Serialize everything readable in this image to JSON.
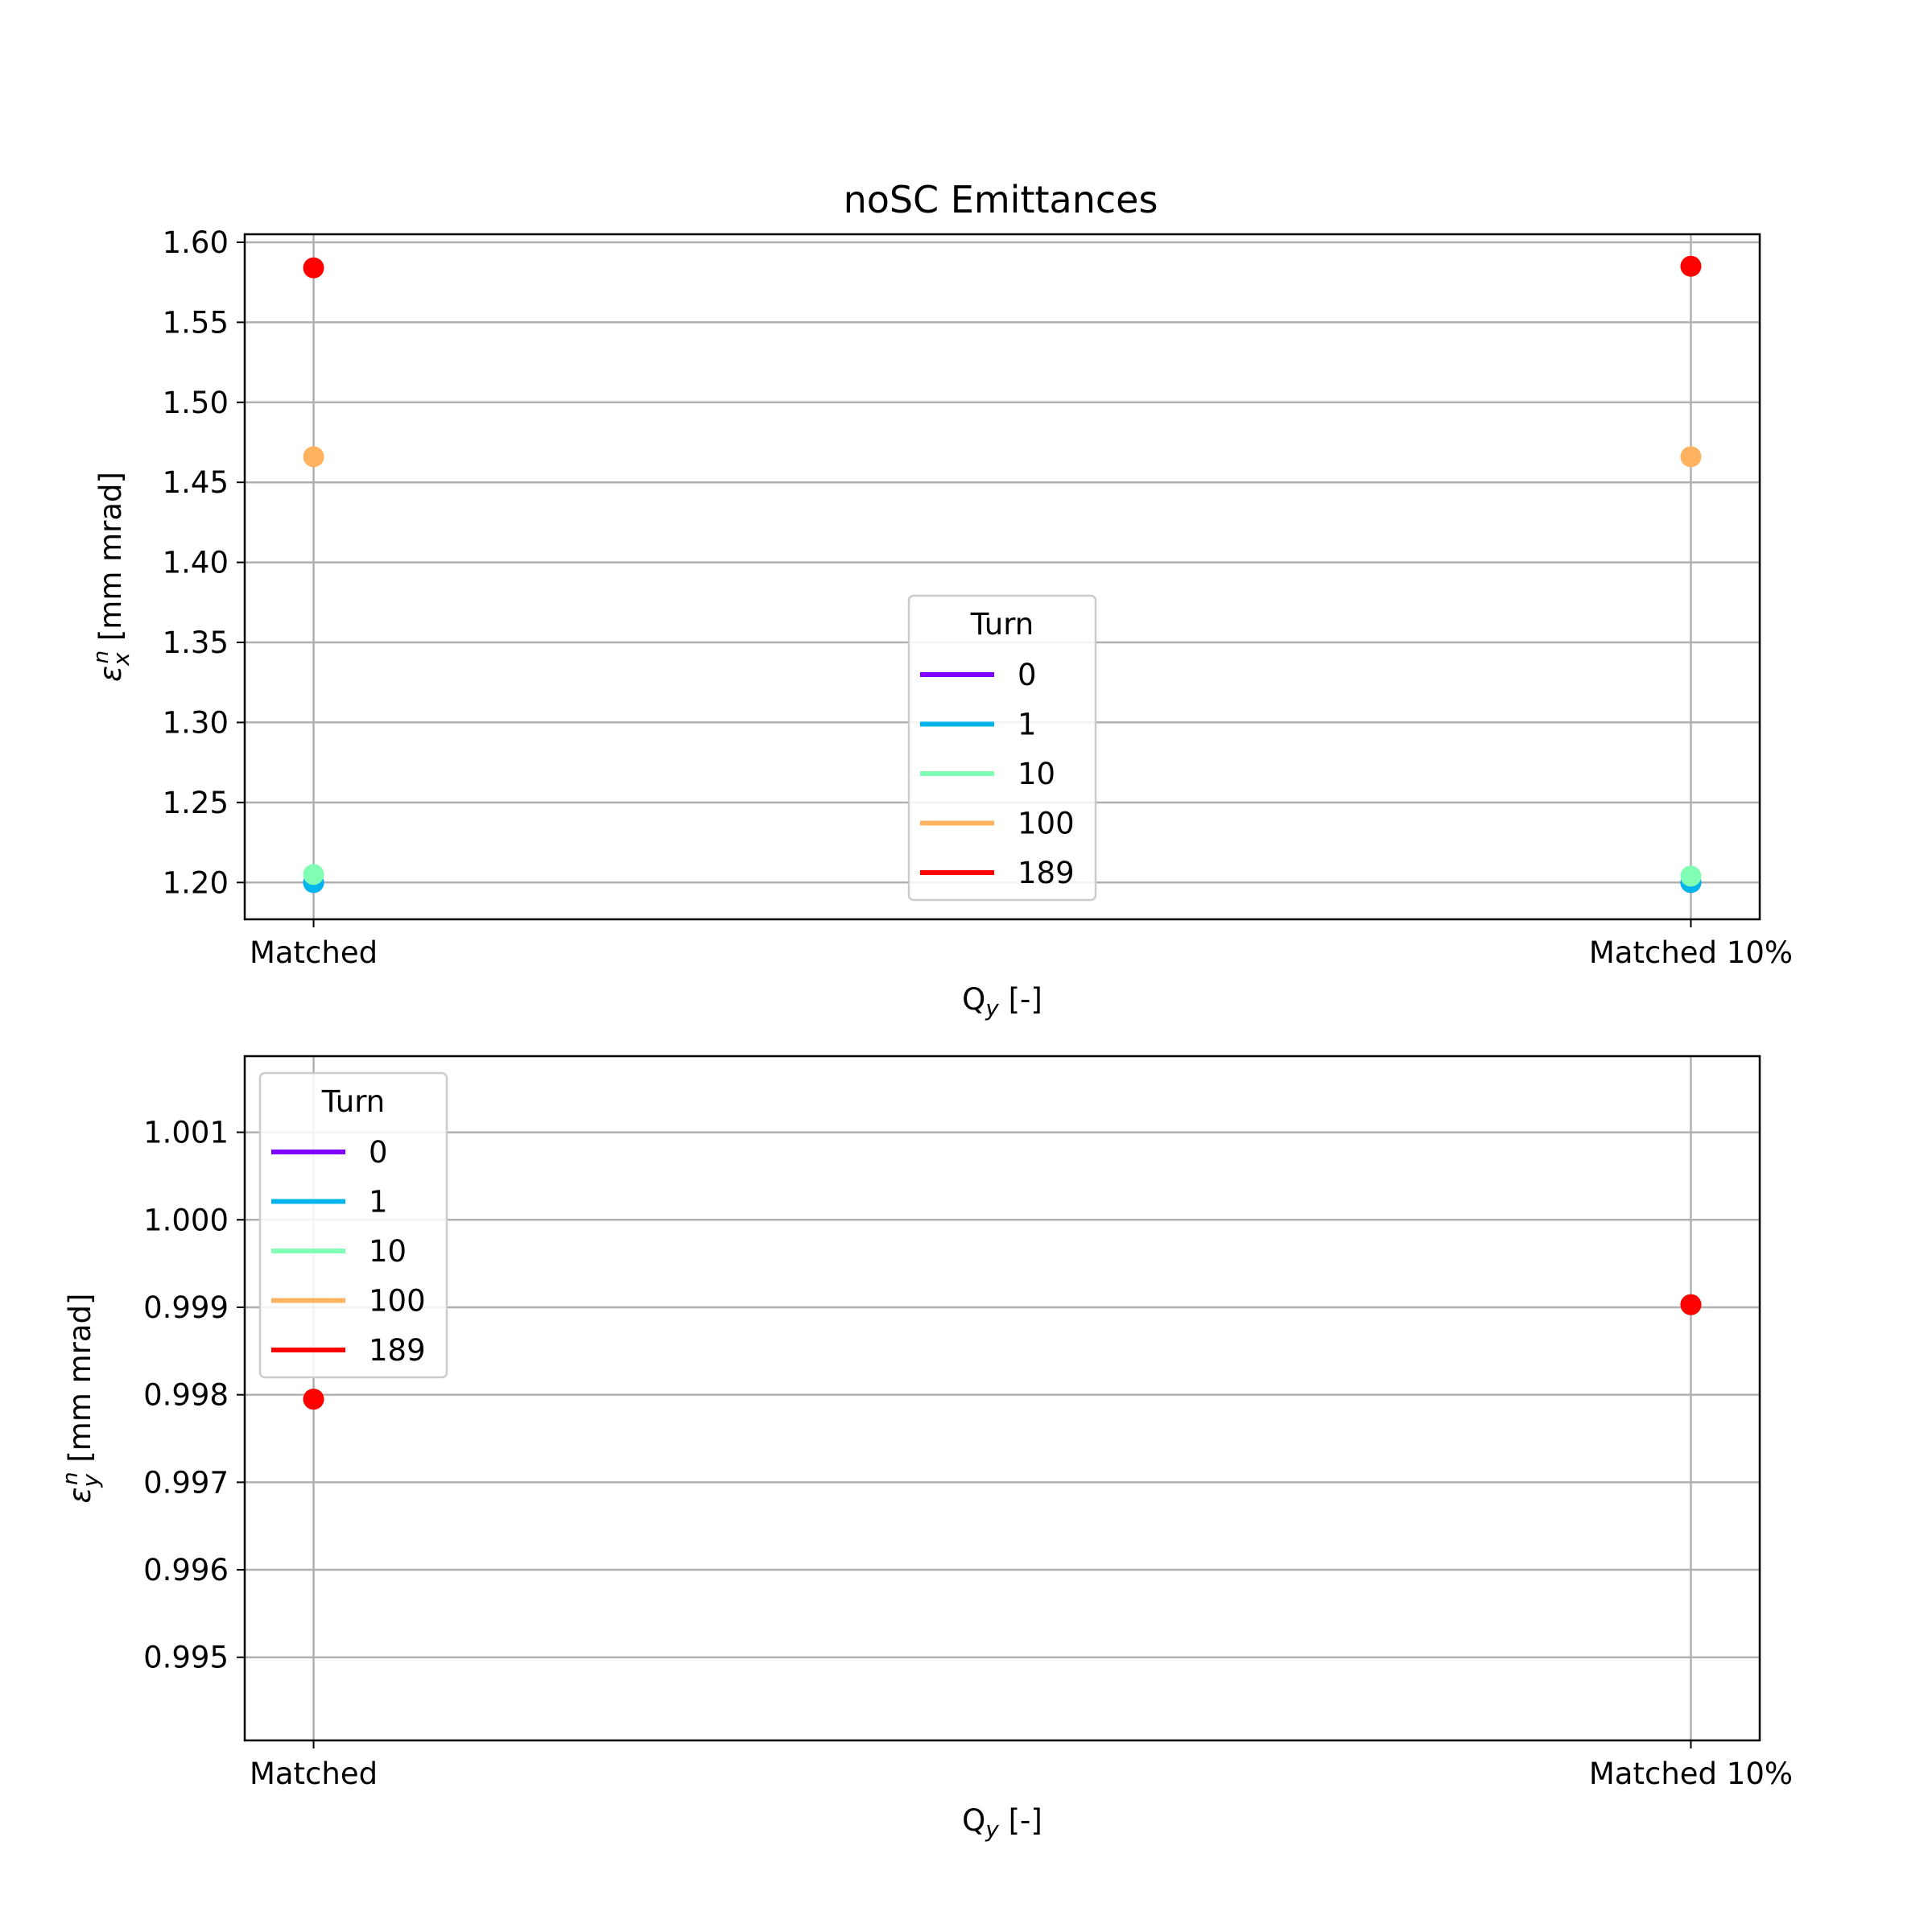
{
  "chart_data": [
    {
      "type": "scatter",
      "title": "noSC Emittances",
      "xlabel": "Q_y [-]",
      "xlabel_main": "Q",
      "xlabel_sub": "y",
      "xlabel_rest": " [-]",
      "ylabel_symbol": "ε",
      "ylabel_sup": "n",
      "ylabel_sub": "x",
      "ylabel_rest": " [mm mrad]",
      "categories": [
        "Matched",
        "Matched 10%"
      ],
      "ylim": [
        1.177,
        1.605
      ],
      "yticks": [
        1.2,
        1.25,
        1.3,
        1.35,
        1.4,
        1.45,
        1.5,
        1.55,
        1.6
      ],
      "ytick_labels": [
        "1.20",
        "1.25",
        "1.30",
        "1.35",
        "1.40",
        "1.45",
        "1.50",
        "1.55",
        "1.60"
      ],
      "grid": true,
      "legend": {
        "title": "Turn",
        "placement": "lower-center"
      },
      "series": [
        {
          "name": "0",
          "color": "#8000ff",
          "values": [
            1.2,
            1.2
          ]
        },
        {
          "name": "1",
          "color": "#00b5eb",
          "values": [
            1.2,
            1.2
          ]
        },
        {
          "name": "10",
          "color": "#80ffb4",
          "values": [
            1.205,
            1.204
          ]
        },
        {
          "name": "100",
          "color": "#ffb360",
          "values": [
            1.466,
            1.466
          ]
        },
        {
          "name": "189",
          "color": "#ff0000",
          "values": [
            1.584,
            1.585
          ]
        }
      ]
    },
    {
      "type": "scatter",
      "title": "",
      "xlabel": "Q_y [-]",
      "xlabel_main": "Q",
      "xlabel_sub": "y",
      "xlabel_rest": " [-]",
      "ylabel_symbol": "ε",
      "ylabel_sup": "n",
      "ylabel_sub": "y",
      "ylabel_rest": " [mm mrad]",
      "categories": [
        "Matched",
        "Matched 10%"
      ],
      "ylim": [
        0.99405,
        1.00187
      ],
      "yticks": [
        0.995,
        0.996,
        0.997,
        0.998,
        0.999,
        1.0,
        1.001
      ],
      "ytick_labels": [
        "0.995",
        "0.996",
        "0.997",
        "0.998",
        "0.999",
        "1.000",
        "1.001"
      ],
      "grid": true,
      "legend": {
        "title": "Turn",
        "placement": "upper-left"
      },
      "series": [
        {
          "name": "0",
          "color": "#8000ff",
          "values": [
            0.99795,
            0.99903
          ]
        },
        {
          "name": "1",
          "color": "#00b5eb",
          "values": [
            0.99795,
            0.99903
          ]
        },
        {
          "name": "10",
          "color": "#80ffb4",
          "values": [
            0.99795,
            0.99903
          ]
        },
        {
          "name": "100",
          "color": "#ffb360",
          "values": [
            0.99795,
            0.99903
          ]
        },
        {
          "name": "189",
          "color": "#ff0000",
          "values": [
            0.99795,
            0.99903
          ]
        }
      ]
    }
  ]
}
